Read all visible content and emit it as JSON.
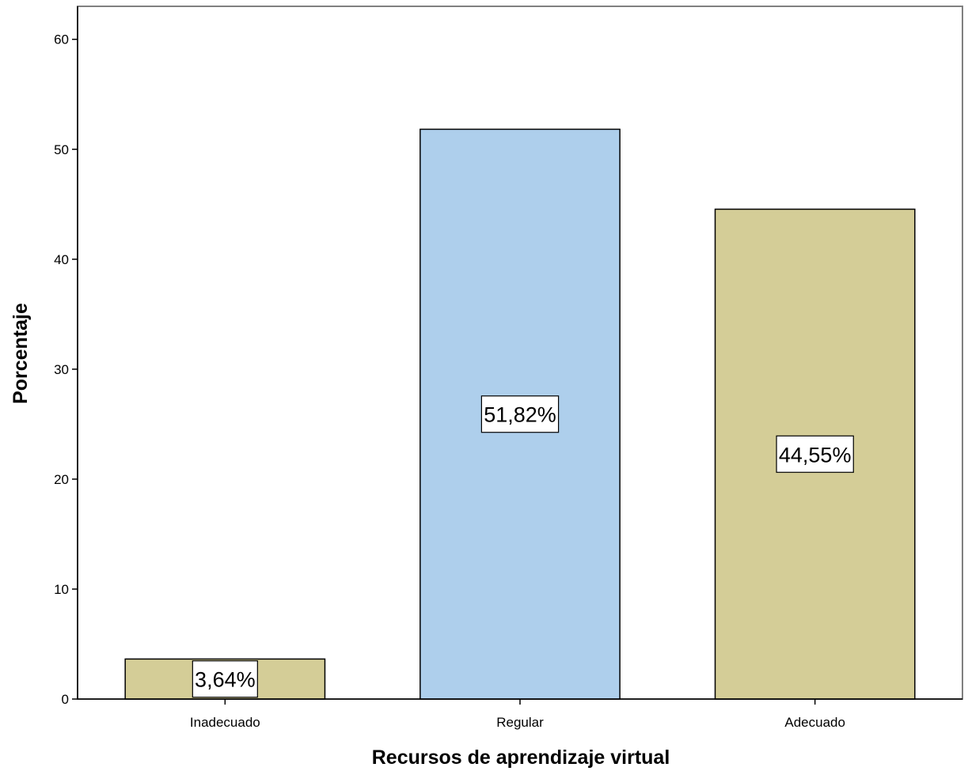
{
  "chart_data": {
    "type": "bar",
    "categories": [
      "Inadecuado",
      "Regular",
      "Adecuado"
    ],
    "values": [
      3.64,
      51.82,
      44.55
    ],
    "data_labels": [
      "3,64%",
      "51,82%",
      "44,55%"
    ],
    "colors": [
      "#d4cd97",
      "#aecfec",
      "#d4cd97"
    ],
    "title": "",
    "xlabel": "Recursos de aprendizaje virtual",
    "ylabel": "Porcentaje",
    "ylim": [
      0,
      63
    ],
    "yticks": [
      0,
      10,
      20,
      30,
      40,
      50,
      60
    ],
    "grid": false,
    "legend": "none"
  }
}
